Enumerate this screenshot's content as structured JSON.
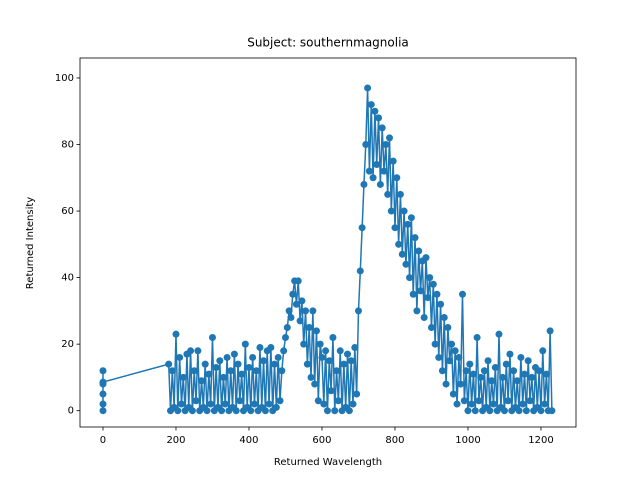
{
  "chart_data": {
    "type": "line",
    "title": "Subject: southernmagnolia",
    "x_label": "Returned Wavelength",
    "y_label": "Returned Intensity",
    "color": "#1f77b4",
    "markers": true,
    "xlim": [
      -63,
      1296
    ],
    "ylim": [
      -4.9,
      106
    ],
    "xticks": [
      0,
      200,
      400,
      600,
      800,
      1000,
      1200
    ],
    "yticks": [
      0,
      20,
      40,
      60,
      80,
      100
    ],
    "x": [
      0,
      0,
      0,
      0,
      0,
      0,
      180,
      185,
      190,
      195,
      200,
      205,
      210,
      215,
      220,
      225,
      230,
      235,
      240,
      245,
      250,
      255,
      260,
      265,
      270,
      275,
      280,
      285,
      290,
      295,
      300,
      305,
      310,
      315,
      320,
      325,
      330,
      335,
      340,
      345,
      350,
      355,
      360,
      365,
      370,
      375,
      380,
      385,
      390,
      395,
      400,
      405,
      410,
      415,
      420,
      425,
      430,
      435,
      440,
      445,
      450,
      455,
      460,
      465,
      470,
      475,
      480,
      485,
      490,
      495,
      500,
      505,
      510,
      515,
      520,
      525,
      530,
      535,
      540,
      545,
      550,
      555,
      560,
      565,
      570,
      575,
      580,
      585,
      590,
      595,
      600,
      605,
      610,
      615,
      620,
      625,
      630,
      635,
      640,
      645,
      650,
      655,
      660,
      665,
      670,
      675,
      680,
      685,
      690,
      695,
      700,
      705,
      710,
      715,
      720,
      725,
      730,
      735,
      740,
      745,
      750,
      755,
      760,
      765,
      770,
      775,
      780,
      785,
      790,
      795,
      800,
      805,
      810,
      815,
      820,
      825,
      830,
      835,
      840,
      845,
      850,
      855,
      860,
      865,
      870,
      875,
      880,
      885,
      890,
      895,
      900,
      905,
      910,
      915,
      920,
      925,
      930,
      935,
      940,
      945,
      950,
      955,
      960,
      965,
      970,
      975,
      980,
      985,
      990,
      995,
      1000,
      1005,
      1010,
      1015,
      1020,
      1025,
      1030,
      1035,
      1040,
      1045,
      1050,
      1055,
      1060,
      1065,
      1070,
      1075,
      1080,
      1085,
      1090,
      1095,
      1100,
      1105,
      1110,
      1115,
      1120,
      1125,
      1130,
      1135,
      1140,
      1145,
      1150,
      1155,
      1160,
      1165,
      1170,
      1175,
      1180,
      1185,
      1190,
      1195,
      1200,
      1205,
      1210,
      1215,
      1220,
      1225,
      1230
    ],
    "values": [
      0,
      12,
      5,
      8,
      2,
      8.6,
      14,
      0,
      12,
      1,
      23,
      0,
      16,
      2,
      10,
      0,
      17,
      1,
      18,
      0,
      12,
      3,
      18,
      0,
      9,
      1,
      14,
      0,
      11,
      2,
      22,
      0,
      13,
      1,
      15,
      0,
      10,
      2,
      16,
      0,
      12,
      1,
      17,
      0,
      14,
      3,
      11,
      0,
      20,
      1,
      13,
      0,
      16,
      2,
      12,
      0,
      19,
      1,
      15,
      0,
      18,
      2,
      19,
      0,
      14,
      1,
      16,
      3,
      12,
      18,
      22,
      25,
      30,
      28,
      35,
      39,
      32,
      39,
      27,
      33,
      20,
      30,
      14,
      25,
      10,
      30,
      8,
      24,
      3,
      20,
      16,
      2,
      18,
      0,
      15,
      6,
      22,
      0,
      12,
      3,
      18,
      0,
      14,
      1,
      17,
      0,
      15,
      2,
      19,
      5,
      30,
      42,
      55,
      68,
      80,
      97,
      72,
      92,
      70,
      90,
      74,
      88,
      68,
      85,
      72,
      80,
      65,
      82,
      60,
      75,
      55,
      70,
      50,
      65,
      47,
      60,
      44,
      56,
      40,
      58,
      35,
      52,
      30,
      48,
      36,
      45,
      28,
      46,
      34,
      40,
      25,
      38,
      20,
      35,
      16,
      32,
      12,
      28,
      8,
      25,
      15,
      20,
      5,
      18,
      2,
      16,
      8,
      35,
      3,
      12,
      0,
      14,
      2,
      11,
      0,
      22,
      3,
      10,
      0,
      12,
      1,
      15,
      0,
      9,
      2,
      13,
      0,
      23,
      1,
      10,
      0,
      14,
      3,
      17,
      0,
      12,
      1,
      9,
      0,
      16,
      2,
      11,
      0,
      15,
      3,
      10,
      0,
      13,
      1,
      12,
      0,
      18,
      2,
      11,
      0,
      24,
      0
    ]
  }
}
